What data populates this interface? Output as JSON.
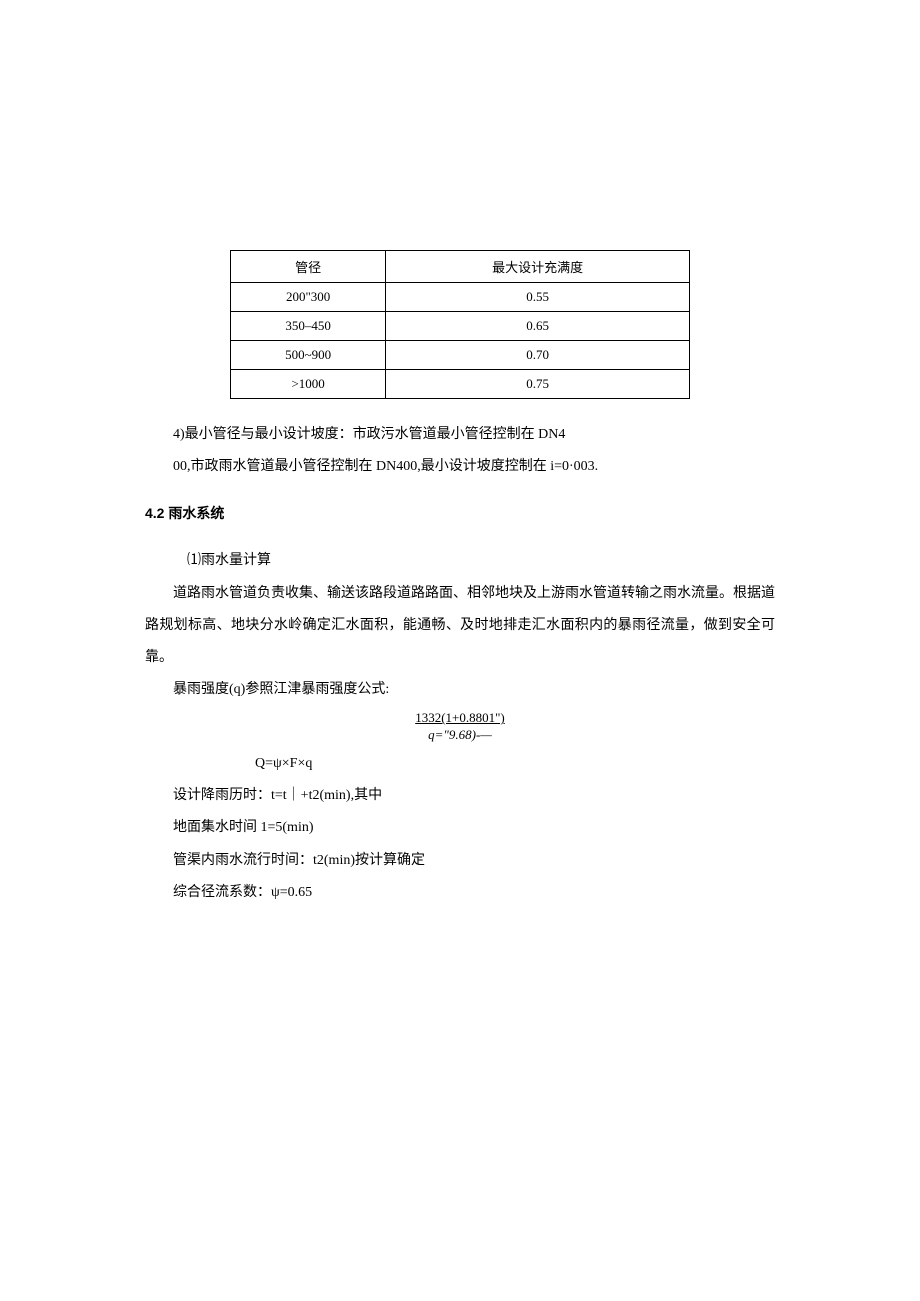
{
  "table": {
    "header": {
      "col1": "管径",
      "col2": "最大设计充满度"
    },
    "rows": [
      {
        "c1": "200\"300",
        "c2": "0.55"
      },
      {
        "c1": "350–450",
        "c2": "0.65"
      },
      {
        "c1": "500~900",
        "c2": "0.70"
      },
      {
        "c1": ">1000",
        "c2": "0.75"
      }
    ]
  },
  "para1": {
    "line1": "4)最小管径与最小设计坡度：市政污水管道最小管径控制在 DN4",
    "line2": "00,市政雨水管道最小管径控制在 DN400,最小设计坡度控制在 i=0·003."
  },
  "heading": "4.2 雨水系统",
  "para2": {
    "l1": "⑴雨水量计算",
    "l2": "道路雨水管道负责收集、输送该路段道路路面、相邻地块及上游雨水管道转输之雨水流量。根据道路规划标高、地块分水岭确定汇水面积，能通畅、及时地排走汇水面积内的暴雨径流量，做到安全可靠。",
    "l3": "暴雨强度(q)参照江津暴雨强度公式:"
  },
  "formula": {
    "top": "1332(1+0.8801\")",
    "bottom": "q=\"9.68)-—"
  },
  "formula_q": "Q=ψ×F×q",
  "specs": {
    "s1": "设计降雨历时：t=t｜+t2(min),其中",
    "s2": "地面集水时间 1=5(min)",
    "s3": "管渠内雨水流行时间：t2(min)按计算确定",
    "s4": "综合径流系数：ψ=0.65"
  }
}
